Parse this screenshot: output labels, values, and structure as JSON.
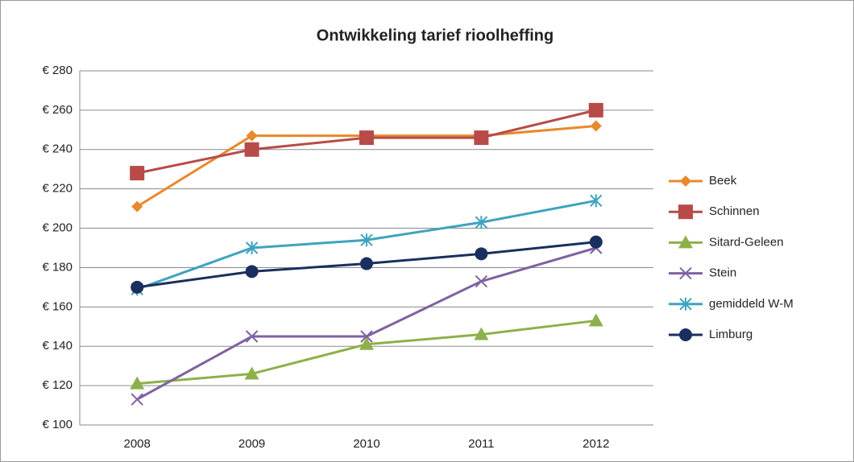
{
  "chart_data": {
    "type": "line",
    "title": "Ontwikkeling tarief rioolheffing",
    "categories": [
      "2008",
      "2009",
      "2010",
      "2011",
      "2012"
    ],
    "series": [
      {
        "name": "Beek",
        "color": "#e8892b",
        "marker": "diamond",
        "values": [
          211,
          247,
          247,
          247,
          252
        ]
      },
      {
        "name": "Schinnen",
        "color": "#b84b47",
        "marker": "square",
        "values": [
          228,
          240,
          246,
          246,
          260
        ]
      },
      {
        "name": "Sitard-Geleen",
        "color": "#8db04a",
        "marker": "triangle",
        "values": [
          121,
          126,
          141,
          146,
          153
        ]
      },
      {
        "name": "Stein",
        "color": "#7f62a0",
        "marker": "x",
        "values": [
          113,
          145,
          145,
          173,
          190
        ]
      },
      {
        "name": "gemiddeld W-M",
        "color": "#3fa3bd",
        "marker": "asterisk",
        "values": [
          169,
          190,
          194,
          203,
          214
        ]
      },
      {
        "name": "Limburg",
        "color": "#1b2f5e",
        "marker": "circle",
        "values": [
          170,
          178,
          182,
          187,
          193
        ]
      }
    ],
    "ylim": [
      100,
      280
    ],
    "yticks": [
      {
        "value": 100,
        "label": "€ 100"
      },
      {
        "value": 120,
        "label": "€ 120"
      },
      {
        "value": 140,
        "label": "€ 140"
      },
      {
        "value": 160,
        "label": "€ 160"
      },
      {
        "value": 180,
        "label": "€ 180"
      },
      {
        "value": 200,
        "label": "€ 200"
      },
      {
        "value": 220,
        "label": "€ 220"
      },
      {
        "value": 240,
        "label": "€ 240"
      },
      {
        "value": 260,
        "label": "€ 260"
      },
      {
        "value": 280,
        "label": "€ 280"
      }
    ],
    "grid": true,
    "legend": "right"
  }
}
